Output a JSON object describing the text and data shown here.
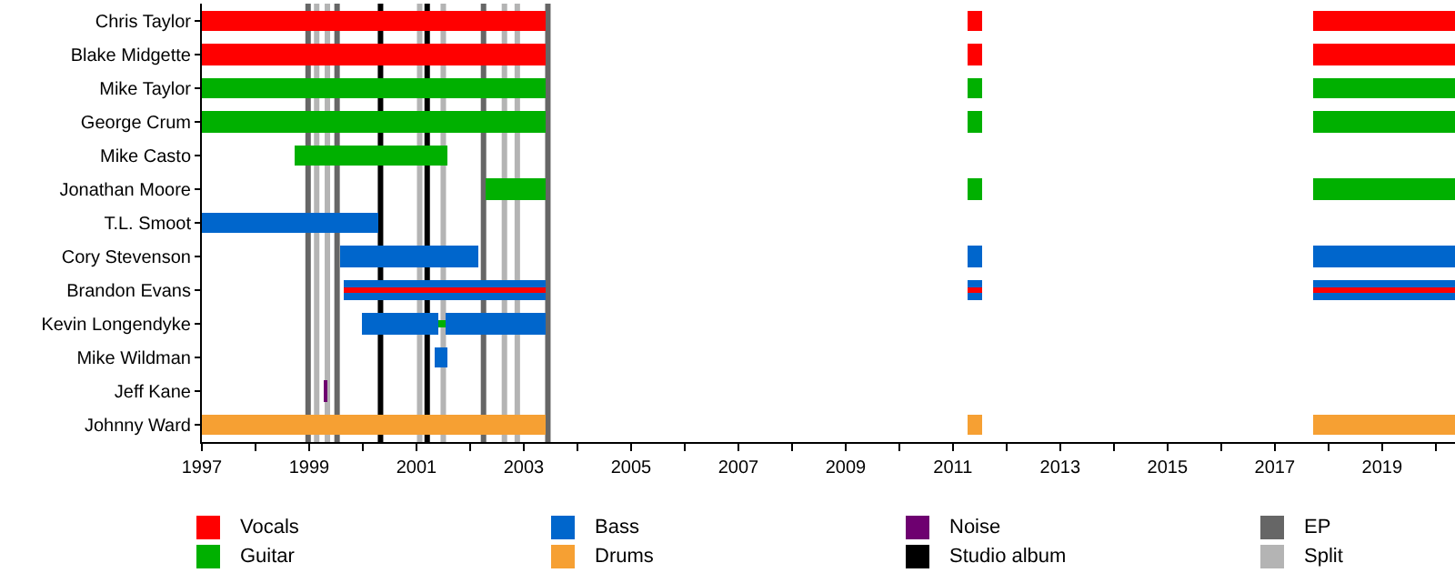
{
  "chart_data": {
    "type": "bar",
    "orientation": "horizontal",
    "categories": [
      "Chris Taylor",
      "Blake Midgette",
      "Mike Taylor",
      "George Crum",
      "Mike Casto",
      "Jonathan Moore",
      "T.L. Smoot",
      "Cory Stevenson",
      "Brandon Evans",
      "Kevin Longendyke",
      "Mike Wildman",
      "Jeff Kane",
      "Johnny Ward"
    ],
    "series": [
      {
        "name": "Vocals",
        "color": "#ff0000",
        "base": [
          1997,
          1997,
          null,
          null,
          null,
          null,
          null,
          null,
          1999.64,
          null,
          null,
          null,
          null
        ],
        "values": [
          6.4,
          6.4,
          null,
          null,
          null,
          null,
          null,
          null,
          3.76,
          null,
          null,
          null,
          null
        ]
      },
      {
        "color": "#ff0000",
        "base": [
          2011.27,
          2011.27,
          null,
          null,
          null,
          null,
          null,
          null,
          2011.27,
          null,
          null,
          null,
          null
        ],
        "values": [
          0.27,
          0.27,
          null,
          null,
          null,
          null,
          null,
          null,
          0.27,
          null,
          null,
          null,
          null
        ]
      },
      {
        "color": "#ff0000",
        "base": [
          2017.71,
          2017.71,
          null,
          null,
          null,
          null,
          null,
          null,
          2017.71,
          null,
          null,
          null,
          null
        ],
        "values": [
          2.65,
          2.65,
          null,
          null,
          null,
          null,
          null,
          null,
          2.65,
          null,
          null,
          null,
          null
        ]
      },
      {
        "name": "Guitar",
        "color": "#00b000",
        "base": [
          null,
          null,
          1997,
          1997,
          1998.73,
          2002.29,
          null,
          null,
          null,
          2001.41,
          null,
          null,
          null
        ],
        "values": [
          null,
          null,
          6.4,
          6.4,
          2.85,
          1.11,
          null,
          null,
          null,
          0.13,
          null,
          null,
          null
        ]
      },
      {
        "color": "#00b000",
        "base": [
          null,
          null,
          2011.27,
          2011.27,
          null,
          2011.27,
          null,
          null,
          null,
          null,
          null,
          null,
          null
        ],
        "values": [
          null,
          null,
          0.27,
          0.27,
          null,
          0.27,
          null,
          null,
          null,
          null,
          null,
          null,
          null
        ]
      },
      {
        "color": "#00b000",
        "base": [
          null,
          null,
          2017.71,
          2017.71,
          null,
          2017.71,
          null,
          null,
          null,
          null,
          null,
          null,
          null
        ],
        "values": [
          null,
          null,
          2.65,
          2.65,
          null,
          2.65,
          null,
          null,
          null,
          null,
          null,
          null,
          null
        ]
      },
      {
        "name": "Bass",
        "color": "#0066cc",
        "base": [
          null,
          null,
          null,
          null,
          null,
          null,
          1997,
          1999.58,
          1999.64,
          2000.0,
          2001.34,
          null,
          null
        ],
        "values": [
          null,
          null,
          null,
          null,
          null,
          null,
          3.29,
          2.57,
          3.76,
          1.41,
          0.24,
          null,
          null
        ]
      },
      {
        "color": "#0066cc",
        "base": [
          null,
          null,
          null,
          null,
          null,
          null,
          null,
          2011.27,
          2011.27,
          2001.54,
          null,
          null,
          null
        ],
        "values": [
          null,
          null,
          null,
          null,
          null,
          null,
          null,
          0.27,
          0.27,
          1.86,
          null,
          null,
          null
        ]
      },
      {
        "color": "#0066cc",
        "base": [
          null,
          null,
          null,
          null,
          null,
          null,
          null,
          2017.71,
          2017.71,
          null,
          null,
          null,
          null
        ],
        "values": [
          null,
          null,
          null,
          null,
          null,
          null,
          null,
          2.65,
          2.65,
          null,
          null,
          null,
          null
        ]
      },
      {
        "name": "Drums",
        "color": "#f6a033",
        "base": [
          null,
          null,
          null,
          null,
          null,
          null,
          null,
          null,
          null,
          null,
          null,
          null,
          1997
        ],
        "values": [
          null,
          null,
          null,
          null,
          null,
          null,
          null,
          null,
          null,
          null,
          null,
          null,
          6.4
        ]
      },
      {
        "color": "#f6a033",
        "base": [
          null,
          null,
          null,
          null,
          null,
          null,
          null,
          null,
          null,
          null,
          null,
          null,
          2011.27
        ],
        "values": [
          null,
          null,
          null,
          null,
          null,
          null,
          null,
          null,
          null,
          null,
          null,
          null,
          0.27
        ]
      },
      {
        "color": "#f6a033",
        "base": [
          null,
          null,
          null,
          null,
          null,
          null,
          null,
          null,
          null,
          null,
          null,
          null,
          2017.71
        ],
        "values": [
          null,
          null,
          null,
          null,
          null,
          null,
          null,
          null,
          null,
          null,
          null,
          null,
          2.65
        ]
      },
      {
        "name": "Noise",
        "color": "#6e0070",
        "base": [
          null,
          null,
          null,
          null,
          null,
          null,
          null,
          null,
          null,
          null,
          null,
          1999.27,
          null
        ],
        "values": [
          null,
          null,
          null,
          null,
          null,
          null,
          null,
          null,
          null,
          null,
          null,
          0.07,
          null
        ]
      }
    ],
    "ref_lines": [
      {
        "axis": "x",
        "value": 2000.33,
        "label": "Studio album",
        "color": "#000000"
      },
      {
        "axis": "x",
        "value": 2001.2,
        "color": "#000000"
      },
      {
        "axis": "x",
        "value": 1998.98,
        "label": "EP",
        "color": "#666666"
      },
      {
        "axis": "x",
        "value": 1999.52,
        "color": "#666666"
      },
      {
        "axis": "x",
        "value": 2002.25,
        "color": "#666666"
      },
      {
        "axis": "x",
        "value": 2003.45,
        "color": "#666666"
      },
      {
        "axis": "x",
        "value": 1999.14,
        "label": "Split",
        "color": "#b4b4b4"
      },
      {
        "axis": "x",
        "value": 1999.34,
        "color": "#b4b4b4"
      },
      {
        "axis": "x",
        "value": 2001.06,
        "color": "#b4b4b4"
      },
      {
        "axis": "x",
        "value": 2001.5,
        "color": "#b4b4b4"
      },
      {
        "axis": "x",
        "value": 2002.64,
        "color": "#b4b4b4"
      },
      {
        "axis": "x",
        "value": 2002.88,
        "color": "#b4b4b4"
      }
    ],
    "xlim": [
      1997,
      2020.36
    ],
    "xticks": [
      1997,
      {
        "value": 1998,
        "label": null
      },
      1999,
      {
        "value": 2000,
        "label": null
      },
      2001,
      {
        "value": 2002,
        "label": null
      },
      2003,
      {
        "value": 2004,
        "label": null
      },
      2005,
      {
        "value": 2006,
        "label": null
      },
      2007,
      {
        "value": 2008,
        "label": null
      },
      2009,
      {
        "value": 2010,
        "label": null
      },
      2011,
      {
        "value": 2012,
        "label": null
      },
      2013,
      {
        "value": 2014,
        "label": null
      },
      2015,
      {
        "value": 2016,
        "label": null
      },
      2017,
      {
        "value": 2018,
        "label": null
      },
      2019,
      {
        "value": 2020,
        "label": null
      }
    ],
    "grid": false,
    "legend": "bottom"
  }
}
